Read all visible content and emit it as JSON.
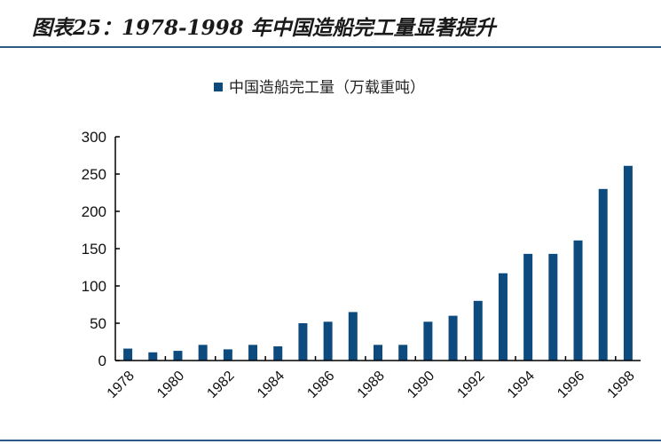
{
  "title": "图表25：1978-1998 年中国造船完工量显著提升",
  "chart_data": {
    "type": "bar",
    "title": "",
    "categories": [
      "1978",
      "1979",
      "1980",
      "1981",
      "1982",
      "1983",
      "1984",
      "1985",
      "1986",
      "1987",
      "1988",
      "1989",
      "1990",
      "1991",
      "1992",
      "1993",
      "1994",
      "1995",
      "1996",
      "1997",
      "1998"
    ],
    "tick_labels": [
      "1978",
      "1980",
      "1982",
      "1984",
      "1986",
      "1988",
      "1990",
      "1992",
      "1994",
      "1996",
      "1998"
    ],
    "series": [
      {
        "name": "中国造船完工量（万载重吨）",
        "values": [
          16,
          11,
          13,
          21,
          15,
          21,
          19,
          50,
          52,
          65,
          21,
          21,
          52,
          60,
          80,
          117,
          143,
          143,
          161,
          230,
          261
        ]
      }
    ],
    "yticks": [
      0,
      50,
      100,
      150,
      200,
      250,
      300
    ],
    "ylim": [
      0,
      300
    ],
    "xlabel": "",
    "ylabel": "",
    "legend": "top-center",
    "grid": false,
    "color": "#0d4a7e"
  }
}
